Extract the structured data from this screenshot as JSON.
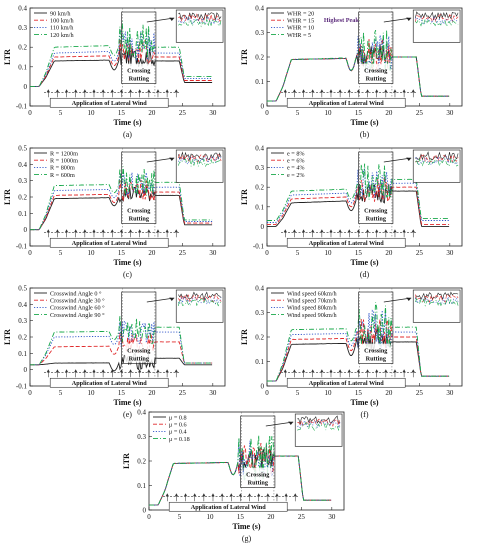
{
  "figure": {
    "colors": {
      "black": "#222222",
      "red": "#e0282a",
      "blue": "#2d52c8",
      "green": "#18a84a"
    },
    "crossing_label": "Crossing\nRutting",
    "wind_label": "Application of Lateral Wind",
    "xlabel": "Time (s)",
    "ylabel": "LTR"
  },
  "chart_data": [
    {
      "panel": "(a)",
      "type": "line",
      "xlabel": "Time (s)",
      "ylabel": "LTR",
      "xlim": [
        0,
        32
      ],
      "ylim": [
        -0.1,
        0.4
      ],
      "xticks": [
        0,
        5,
        10,
        15,
        20,
        25,
        30
      ],
      "yticks": [
        -0.1,
        0,
        0.1,
        0.2,
        0.3,
        0.4
      ],
      "legend_position": "top-left",
      "series": [
        {
          "name": "90 km/h",
          "color": "black",
          "dash": "solid",
          "levels": [
            0.0,
            0.13,
            0.15,
            0.13,
            0.02
          ]
        },
        {
          "name": "100 km/h",
          "color": "red",
          "dash": "dashed",
          "levels": [
            0.0,
            0.15,
            0.18,
            0.15,
            0.03
          ]
        },
        {
          "name": "110 km/h",
          "color": "blue",
          "dash": "dotted",
          "levels": [
            0.0,
            0.17,
            0.21,
            0.17,
            0.04
          ]
        },
        {
          "name": "120 km/h",
          "color": "green",
          "dash": "dashdot",
          "levels": [
            0.0,
            0.2,
            0.24,
            0.2,
            0.05
          ]
        }
      ]
    },
    {
      "panel": "(b)",
      "type": "line",
      "xlabel": "Time (s)",
      "ylabel": "LTR",
      "xlim": [
        0,
        32
      ],
      "ylim": [
        0,
        0.4
      ],
      "xticks": [
        0,
        5,
        10,
        15,
        20,
        25,
        30
      ],
      "yticks": [
        0,
        0.1,
        0.2,
        0.3,
        0.4
      ],
      "legend_position": "top-left",
      "annotation": "Highest Peak",
      "series": [
        {
          "name": "WHR = 20",
          "color": "black",
          "dash": "solid",
          "levels": [
            0.02,
            0.19,
            0.21,
            0.2,
            0.04
          ]
        },
        {
          "name": "WHR = 15",
          "color": "red",
          "dash": "dashed",
          "levels": [
            0.02,
            0.19,
            0.21,
            0.2,
            0.04
          ]
        },
        {
          "name": "WHR = 10",
          "color": "blue",
          "dash": "dotted",
          "levels": [
            0.02,
            0.19,
            0.21,
            0.2,
            0.04
          ]
        },
        {
          "name": "WHR = 5",
          "color": "green",
          "dash": "dashdot",
          "levels": [
            0.02,
            0.19,
            0.22,
            0.2,
            0.04
          ]
        }
      ]
    },
    {
      "panel": "(c)",
      "type": "line",
      "xlabel": "Time (s)",
      "ylabel": "LTR",
      "xlim": [
        0,
        32
      ],
      "ylim": [
        -0.1,
        0.5
      ],
      "xticks": [
        0,
        5,
        10,
        15,
        20,
        25,
        30
      ],
      "yticks": [
        -0.1,
        0,
        0.1,
        0.2,
        0.3,
        0.4,
        0.5
      ],
      "legend_position": "top-left",
      "series": [
        {
          "name": "R = 1200m",
          "color": "black",
          "dash": "solid",
          "levels": [
            0.0,
            0.19,
            0.22,
            0.21,
            0.03
          ]
        },
        {
          "name": "R = 1000m",
          "color": "red",
          "dash": "dashed",
          "levels": [
            0.0,
            0.21,
            0.24,
            0.23,
            0.04
          ]
        },
        {
          "name": "R = 800m",
          "color": "blue",
          "dash": "dotted",
          "levels": [
            0.0,
            0.24,
            0.27,
            0.26,
            0.05
          ]
        },
        {
          "name": "R = 600m",
          "color": "green",
          "dash": "dashdot",
          "levels": [
            0.0,
            0.27,
            0.3,
            0.29,
            0.06
          ]
        }
      ]
    },
    {
      "panel": "(d)",
      "type": "line",
      "xlabel": "Time (s)",
      "ylabel": "LTR",
      "xlim": [
        0,
        32
      ],
      "ylim": [
        -0.1,
        0.4
      ],
      "xticks": [
        0,
        5,
        10,
        15,
        20,
        25,
        30
      ],
      "yticks": [
        -0.1,
        0,
        0.1,
        0.2,
        0.3,
        0.4
      ],
      "legend_position": "top-left",
      "series": [
        {
          "name": "e = 8%",
          "color": "black",
          "dash": "solid",
          "levels": [
            0.0,
            0.12,
            0.17,
            0.18,
            0.0
          ]
        },
        {
          "name": "e = 6%",
          "color": "red",
          "dash": "dashed",
          "levels": [
            0.01,
            0.14,
            0.19,
            0.2,
            0.01
          ]
        },
        {
          "name": "e = 4%",
          "color": "blue",
          "dash": "dotted",
          "levels": [
            0.02,
            0.16,
            0.21,
            0.22,
            0.03
          ]
        },
        {
          "name": "e = 2%",
          "color": "green",
          "dash": "dashdot",
          "levels": [
            0.03,
            0.18,
            0.23,
            0.24,
            0.04
          ]
        }
      ]
    },
    {
      "panel": "(e)",
      "type": "line",
      "xlabel": "Time (s)",
      "ylabel": "LTR",
      "xlim": [
        0,
        32
      ],
      "ylim": [
        -0.1,
        0.5
      ],
      "xticks": [
        0,
        5,
        10,
        15,
        20,
        25,
        30
      ],
      "yticks": [
        -0.1,
        0,
        0.1,
        0.2,
        0.3,
        0.4,
        0.5
      ],
      "legend_position": "top-left",
      "series": [
        {
          "name": "Crosswind Angle 0 °",
          "color": "black",
          "dash": "solid",
          "levels": [
            0.03,
            0.04,
            0.05,
            0.07,
            0.03
          ]
        },
        {
          "name": "Crosswind Angle 30 °",
          "color": "red",
          "dash": "dashed",
          "levels": [
            0.03,
            0.14,
            0.16,
            0.17,
            0.04
          ]
        },
        {
          "name": "Crosswind Angle 60 °",
          "color": "blue",
          "dash": "dotted",
          "levels": [
            0.03,
            0.2,
            0.22,
            0.23,
            0.04
          ]
        },
        {
          "name": "Crosswind Angle 90 °",
          "color": "green",
          "dash": "dashdot",
          "levels": [
            0.03,
            0.23,
            0.25,
            0.26,
            0.04
          ]
        }
      ]
    },
    {
      "panel": "(f)",
      "type": "line",
      "xlabel": "Time (s)",
      "ylabel": "LTR",
      "xlim": [
        0,
        32
      ],
      "ylim": [
        0,
        0.4
      ],
      "xticks": [
        0,
        5,
        10,
        15,
        20,
        25,
        30
      ],
      "yticks": [
        0,
        0.1,
        0.2,
        0.3,
        0.4
      ],
      "legend_position": "top-left",
      "series": [
        {
          "name": "Wind speed 60km/h",
          "color": "black",
          "dash": "solid",
          "levels": [
            0.02,
            0.17,
            0.19,
            0.18,
            0.04
          ]
        },
        {
          "name": "Wind speed 70km/h",
          "color": "red",
          "dash": "dashed",
          "levels": [
            0.02,
            0.19,
            0.21,
            0.2,
            0.04
          ]
        },
        {
          "name": "Wind speed 80km/h",
          "color": "blue",
          "dash": "dotted",
          "levels": [
            0.02,
            0.21,
            0.23,
            0.22,
            0.04
          ]
        },
        {
          "name": "Wind speed 90km/h",
          "color": "green",
          "dash": "dashdot",
          "levels": [
            0.02,
            0.23,
            0.25,
            0.24,
            0.04
          ]
        }
      ]
    },
    {
      "panel": "(g)",
      "type": "line",
      "xlabel": "Time (s)",
      "ylabel": "LTR",
      "xlim": [
        0,
        32
      ],
      "ylim": [
        0,
        0.4
      ],
      "xticks": [
        0,
        5,
        10,
        15,
        20,
        25,
        30
      ],
      "yticks": [
        0,
        0.1,
        0.2,
        0.3,
        0.4
      ],
      "legend_position": "top-left",
      "series": [
        {
          "name": "μ = 0.8",
          "color": "black",
          "dash": "solid",
          "levels": [
            0.02,
            0.19,
            0.21,
            0.22,
            0.04
          ]
        },
        {
          "name": "μ = 0.6",
          "color": "red",
          "dash": "dashed",
          "levels": [
            0.02,
            0.19,
            0.21,
            0.22,
            0.04
          ]
        },
        {
          "name": "μ = 0.4",
          "color": "blue",
          "dash": "dotted",
          "levels": [
            0.02,
            0.19,
            0.21,
            0.22,
            0.04
          ]
        },
        {
          "name": "μ = 0.18",
          "color": "green",
          "dash": "dashdot",
          "levels": [
            0.02,
            0.19,
            0.21,
            0.22,
            0.04
          ]
        }
      ]
    }
  ]
}
